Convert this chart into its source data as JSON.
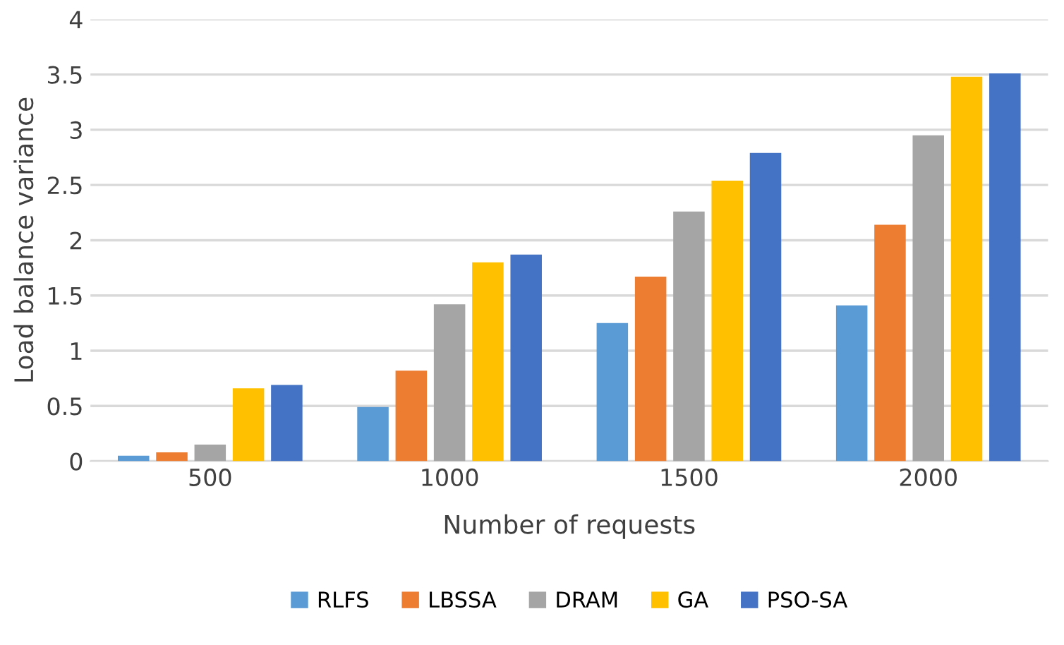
{
  "chart_data": {
    "type": "bar",
    "xlabel": "Number of requests",
    "ylabel": "Load balance variance",
    "categories": [
      "500",
      "1000",
      "1500",
      "2000"
    ],
    "series": [
      {
        "name": "RLFS",
        "color": "#5b9bd5",
        "values": [
          0.05,
          0.49,
          1.25,
          1.41
        ]
      },
      {
        "name": "LBSSA",
        "color": "#ed7d31",
        "values": [
          0.08,
          0.82,
          1.67,
          2.14
        ]
      },
      {
        "name": "DRAM",
        "color": "#a5a5a5",
        "values": [
          0.15,
          1.42,
          2.26,
          2.95
        ]
      },
      {
        "name": "GA",
        "color": "#ffc000",
        "values": [
          0.66,
          1.8,
          2.54,
          3.48
        ]
      },
      {
        "name": "PSO-SA",
        "color": "#4472c4",
        "values": [
          0.69,
          1.87,
          2.79,
          3.51
        ]
      }
    ],
    "ylim": [
      0,
      4
    ],
    "yticks": [
      0,
      0.5,
      1,
      1.5,
      2,
      2.5,
      3,
      3.5,
      4
    ],
    "grid": "y",
    "legend": "bottom"
  }
}
